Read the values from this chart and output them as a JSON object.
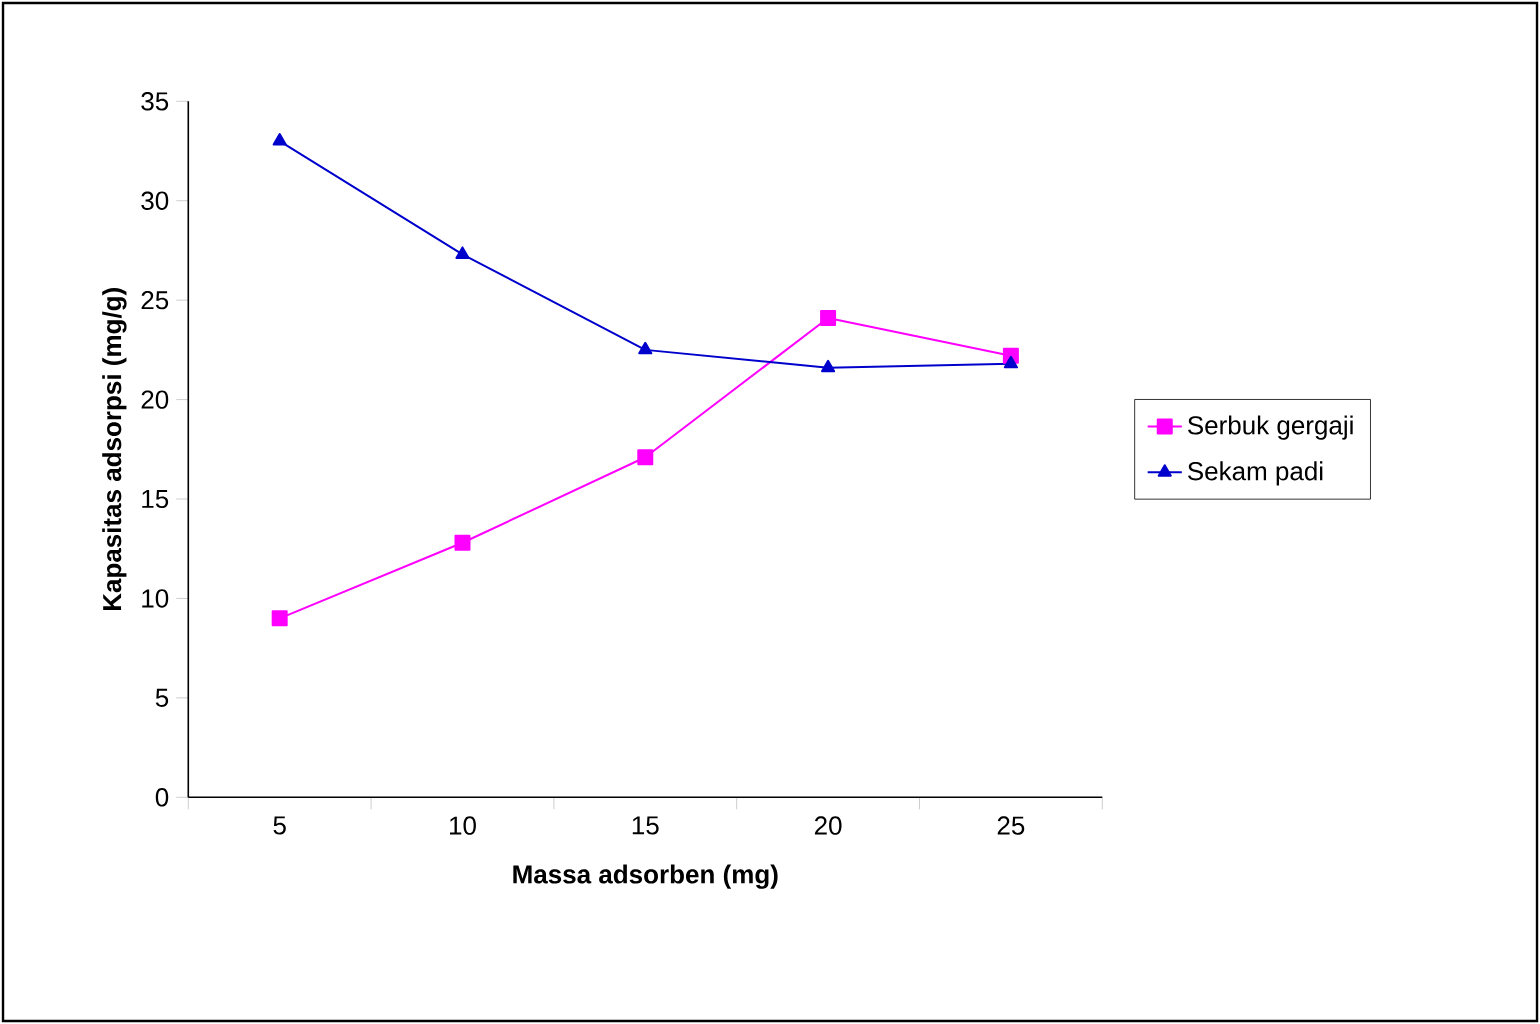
{
  "chart_data": {
    "type": "line",
    "xlabel": "Massa adsorben (mg)",
    "ylabel": "Kapasitas adsorpsi (mg/g)",
    "categories": [
      "5",
      "10",
      "15",
      "20",
      "25"
    ],
    "ylim": [
      0,
      35
    ],
    "yticks": [
      0,
      5,
      10,
      15,
      20,
      25,
      30,
      35
    ],
    "grid": false,
    "legend": "right",
    "line_style": "solid",
    "series": [
      {
        "name": "Serbuk gergaji",
        "color": "#ff00ff",
        "marker": "square",
        "values": [
          9.0,
          12.8,
          17.1,
          24.1,
          22.2
        ]
      },
      {
        "name": "Sekam padi",
        "color": "#0000cc",
        "marker": "triangle",
        "values": [
          33.0,
          27.3,
          22.5,
          21.6,
          21.8
        ]
      }
    ]
  }
}
